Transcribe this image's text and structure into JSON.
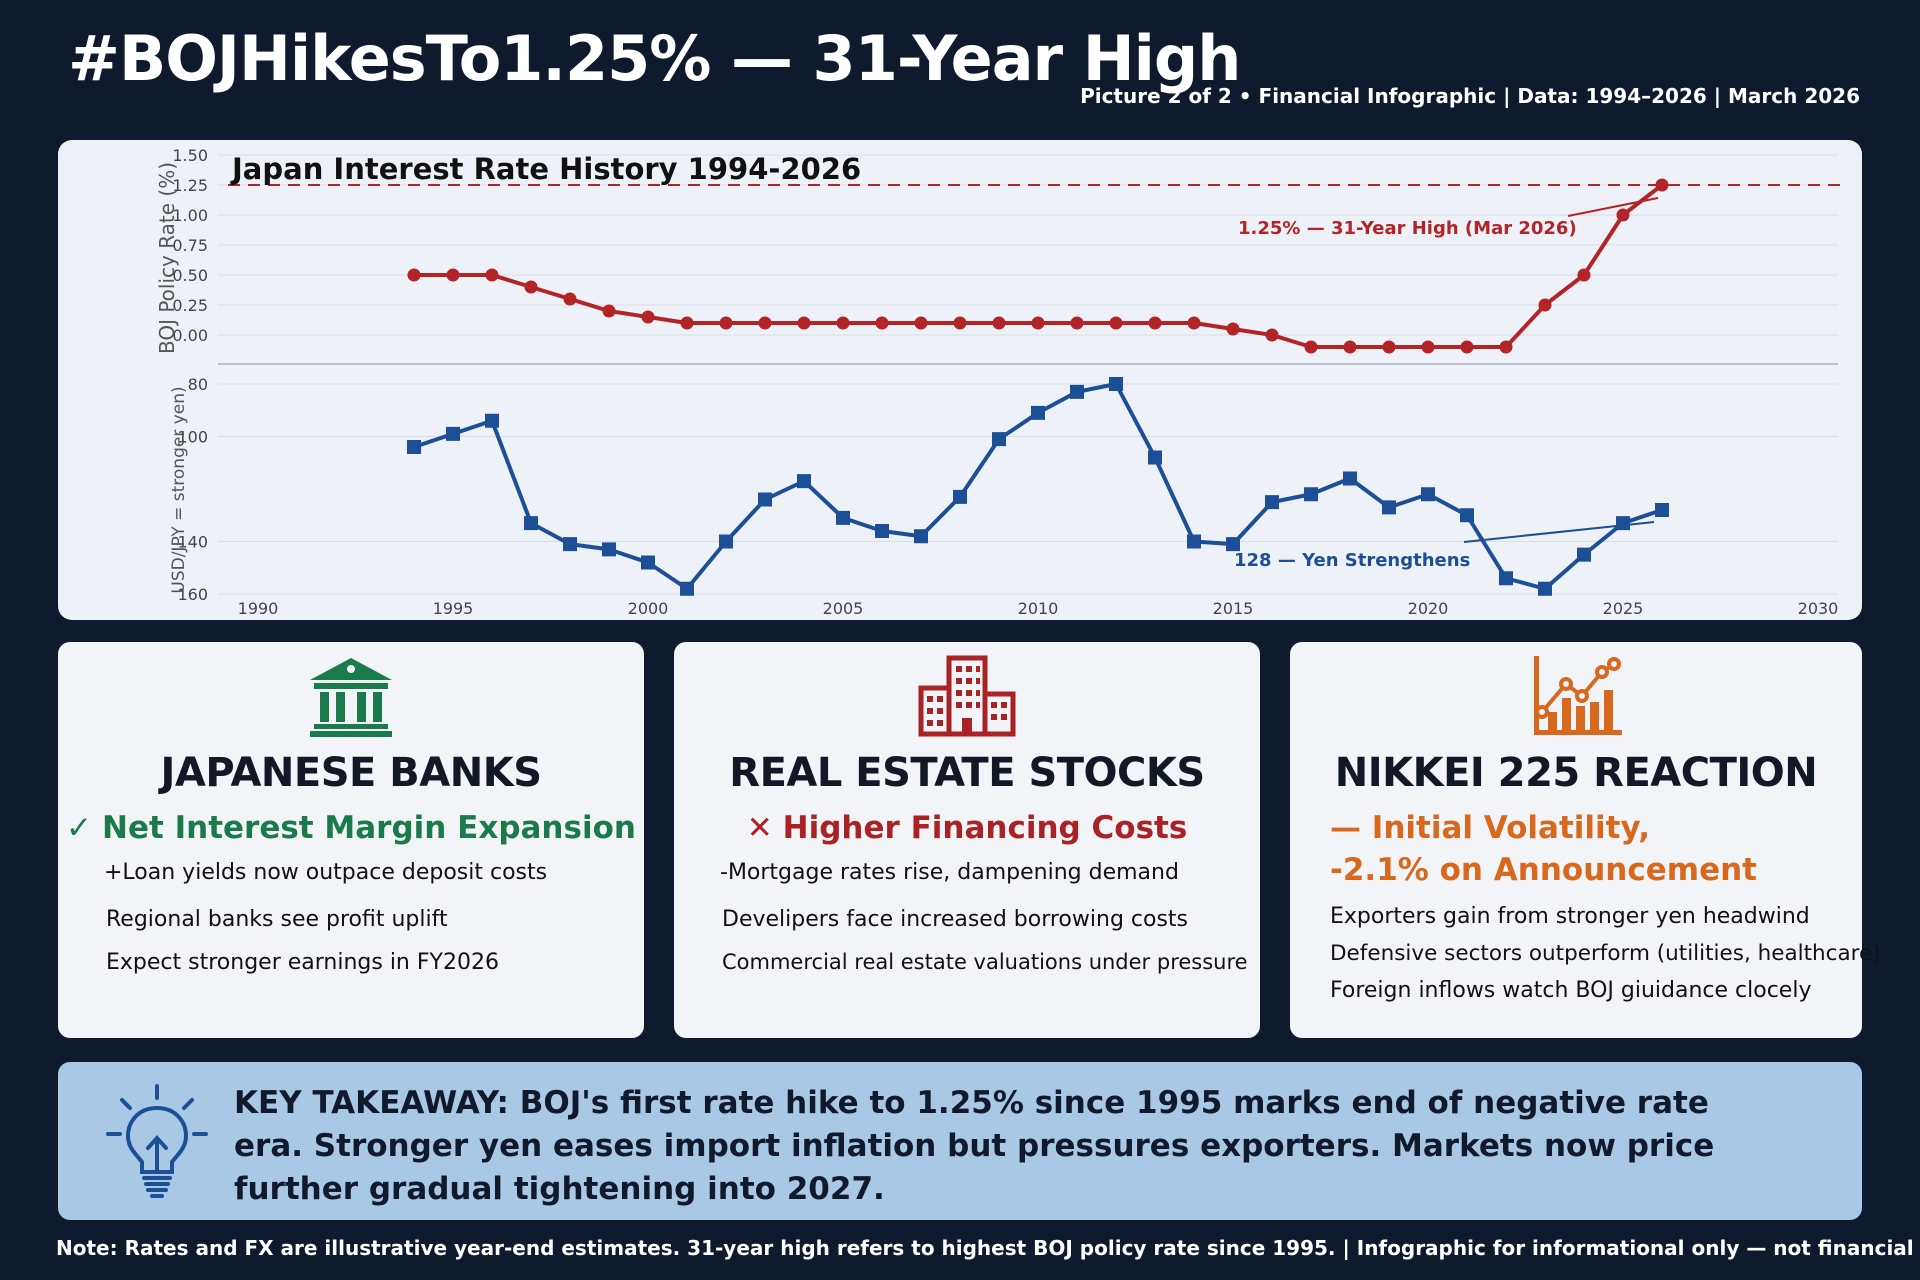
{
  "header": {
    "title": "#BOJHikesTo1.25% — 31-Year High",
    "subtitle": "Picture 2 of 2 • Financial Infographic | Data: 1994–2026 | March 2026"
  },
  "chart_data": {
    "type": "line",
    "title": "Japan Interest Rate History 1994-2026",
    "x": [
      1994,
      1995,
      1996,
      1997,
      1998,
      1999,
      2000,
      2001,
      2002,
      2003,
      2004,
      2005,
      2006,
      2007,
      2008,
      2009,
      2010,
      2011,
      2012,
      2013,
      2014,
      2015,
      2016,
      2017,
      2018,
      2019,
      2020,
      2021,
      2022,
      2023,
      2024,
      2025,
      2026
    ],
    "xlim": [
      1990,
      2030
    ],
    "xticks": [
      "1990",
      "1995",
      "2000",
      "2005",
      "2010",
      "2015",
      "2020",
      "2025",
      "2030"
    ],
    "series": [
      {
        "ylabel": "BOJ Policy Rate (%)",
        "color": "#b32428",
        "ylim": [
          0,
          1.5
        ],
        "yticks": [
          "1.50",
          "1.25",
          "1.00",
          "0.75",
          "0.50",
          "0.25",
          "0.00"
        ],
        "values": [
          0.5,
          0.5,
          0.5,
          0.4,
          0.3,
          0.2,
          0.15,
          0.1,
          0.1,
          0.1,
          0.1,
          0.1,
          0.1,
          0.1,
          0.1,
          0.1,
          0.1,
          0.1,
          0.1,
          0.1,
          0.1,
          0.05,
          0,
          -0.1,
          -0.1,
          -0.1,
          -0.1,
          -0.1,
          -0.1,
          0.25,
          0.5,
          1.0,
          1.25
        ],
        "reference_line": 1.25,
        "annotation": "1.25% — 31-Year High (Mar 2026)"
      },
      {
        "ylabel": "USD/JPY = stronger yen)",
        "color": "#1c4f96",
        "ylim": [
          160,
          80
        ],
        "yticks": [
          "80",
          "100",
          "140",
          "160"
        ],
        "values": [
          104,
          99,
          94,
          133,
          141,
          143,
          148,
          158,
          140,
          124,
          117,
          131,
          136,
          138,
          123,
          101,
          91,
          83,
          80,
          108,
          140,
          141,
          125,
          122,
          116,
          127,
          122,
          130,
          154,
          158,
          145,
          133,
          128
        ],
        "annotation": "128 — Yen Strengthens"
      }
    ]
  },
  "cards": [
    {
      "icon": "bank-icon",
      "title": "JAPANESE BANKS",
      "mark": "✓",
      "headline": "Net Interest Margin Expansion",
      "headline2": "",
      "bullets": [
        "+Loan yields now outpace deposit costs",
        "Regional banks see profit uplift",
        "Expect stronger earnings in FY2026"
      ]
    },
    {
      "icon": "building-icon",
      "title": "REAL ESTATE STOCKS",
      "mark": "✕",
      "headline": "Higher Financing Costs",
      "headline2": "",
      "bullets": [
        "-Mortgage rates rise, dampening demand",
        "Develipers face increased borrowing costs",
        "Commercial real estate valuations under pressure"
      ]
    },
    {
      "icon": "chart-growth-icon",
      "title": "NIKKEI 225 REACTION",
      "mark": "",
      "headline": "— Initial Volatility,",
      "headline2": "-2.1% on Announcement",
      "bullets": [
        "Exporters gain from stronger yen headwind",
        "Defensive sectors outperform (utilities, healthcare)",
        "Foreign inflows watch BOJ giuidance clocely"
      ]
    }
  ],
  "colors": {
    "green": "#1a7a4a",
    "red": "#a82226",
    "orange": "#d8681e"
  },
  "takeaway": {
    "icon": "lightbulb-icon",
    "text": "KEY TAKEAWAY: BOJ's first rate hike to 1.25% since 1995 marks end of negative rate era. Stronger yen eases import inflation but pressures exporters. Markets now price further gradual tightening into 2027."
  },
  "note": "Note: Rates and FX are illustrative year-end estimates. 31-year high refers to highest BOJ policy rate since 1995. | Infographic for informational only — not financial advice."
}
